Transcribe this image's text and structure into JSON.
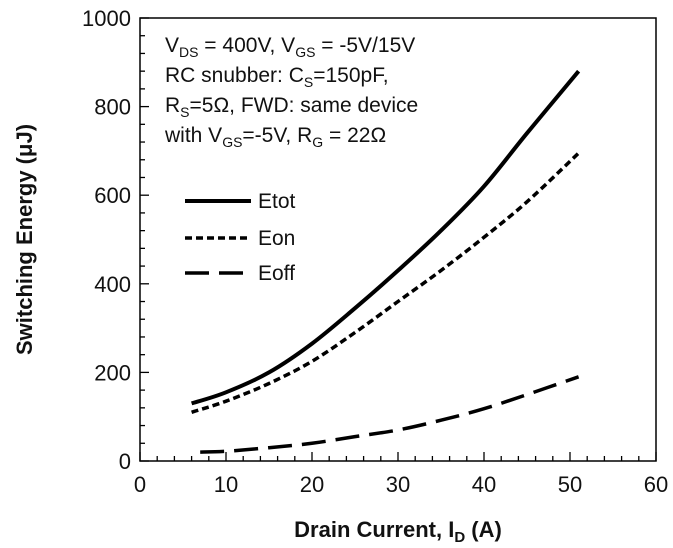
{
  "chart_data": {
    "type": "line",
    "xlabel": {
      "main": "Drain Current, I",
      "sub": "D",
      "unit": " (A)"
    },
    "ylabel": "Switching Energy (μJ)",
    "xlim": [
      0,
      60
    ],
    "ylim": [
      0,
      1000
    ],
    "x_ticks": [
      0,
      10,
      20,
      30,
      40,
      50,
      60
    ],
    "y_ticks": [
      0,
      200,
      400,
      600,
      800,
      1000
    ],
    "grid": false,
    "legend_position": "middle-left",
    "annotation": {
      "line1": [
        {
          "t": "V",
          "sub": false
        },
        {
          "t": "DS",
          "sub": true
        },
        {
          "t": " = 400V, V",
          "sub": false
        },
        {
          "t": "GS",
          "sub": true
        },
        {
          "t": " = -5V/15V",
          "sub": false
        }
      ],
      "line2": [
        {
          "t": "RC snubber: C",
          "sub": false
        },
        {
          "t": "S",
          "sub": true
        },
        {
          "t": "=150pF,",
          "sub": false
        }
      ],
      "line3": [
        {
          "t": "R",
          "sub": false
        },
        {
          "t": "S",
          "sub": true
        },
        {
          "t": "=5Ω, FWD:  same device",
          "sub": false
        }
      ],
      "line4": [
        {
          "t": "with V",
          "sub": false
        },
        {
          "t": "GS",
          "sub": true
        },
        {
          "t": "=-5V, R",
          "sub": false
        },
        {
          "t": "G",
          "sub": true
        },
        {
          "t": " = 22Ω",
          "sub": false
        }
      ]
    },
    "series": [
      {
        "name": "Etot",
        "style": "solid",
        "color": "#000000",
        "x": [
          6,
          10,
          15,
          20,
          25,
          30,
          35,
          40,
          45,
          51
        ],
        "y": [
          130,
          155,
          200,
          265,
          345,
          430,
          520,
          620,
          740,
          880
        ]
      },
      {
        "name": "Eon",
        "style": "dashed",
        "color": "#000000",
        "x": [
          6,
          10,
          15,
          20,
          25,
          30,
          35,
          40,
          45,
          51
        ],
        "y": [
          110,
          135,
          175,
          225,
          290,
          360,
          430,
          505,
          585,
          695
        ]
      },
      {
        "name": "Eoff",
        "style": "longdash",
        "color": "#000000",
        "x": [
          7,
          10,
          15,
          20,
          25,
          30,
          35,
          40,
          45,
          51
        ],
        "y": [
          20,
          22,
          30,
          40,
          55,
          70,
          92,
          118,
          150,
          190
        ]
      }
    ]
  }
}
